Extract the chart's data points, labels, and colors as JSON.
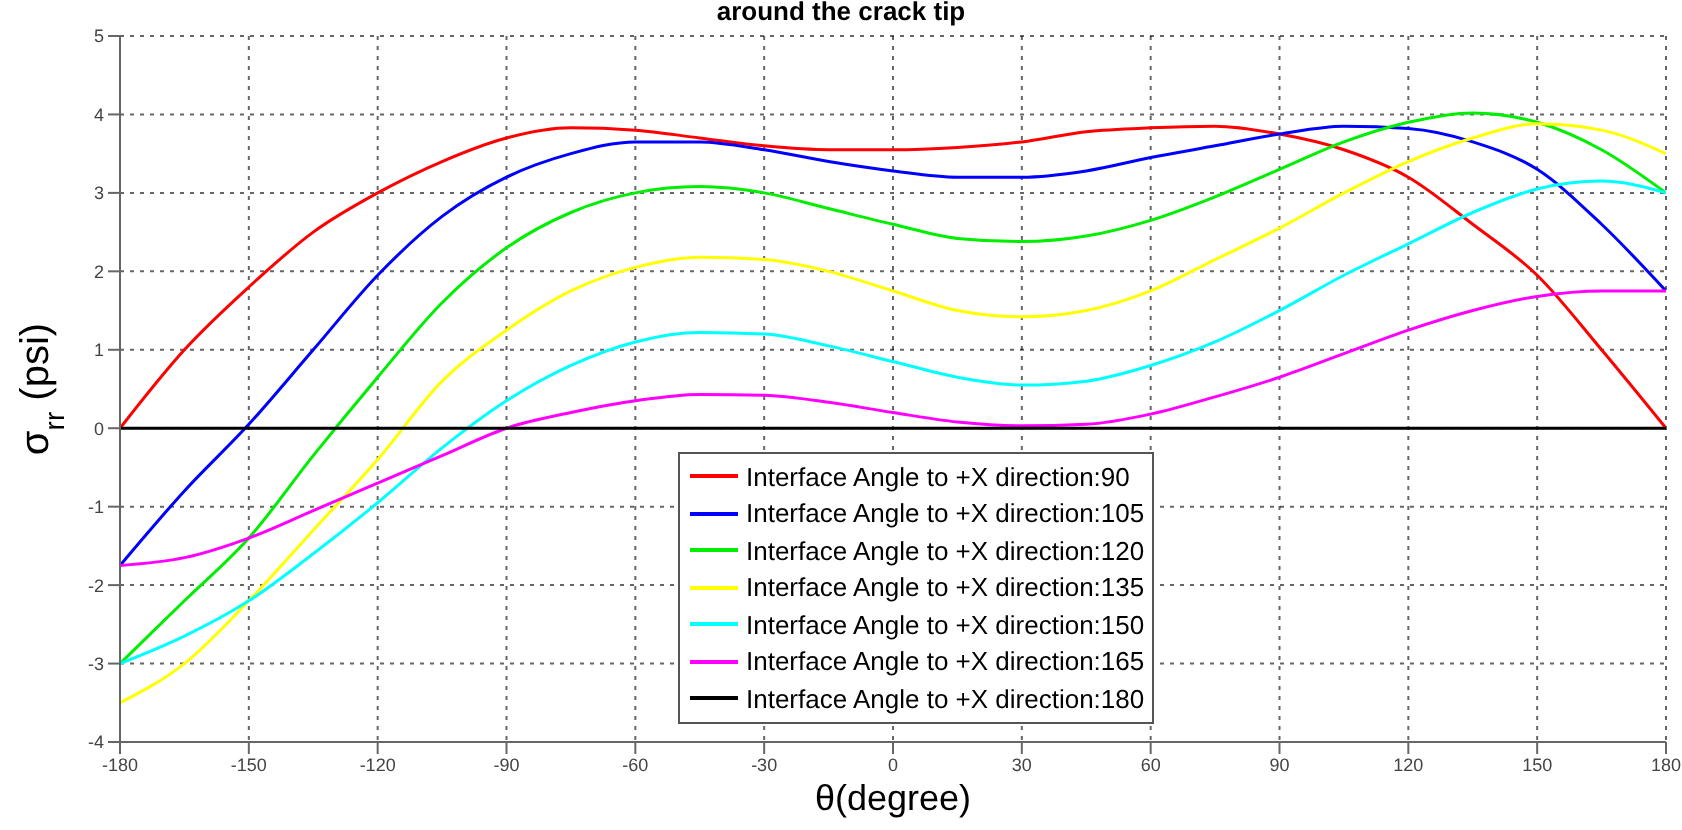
{
  "chart_data": {
    "type": "line",
    "title": "around the crack tip",
    "xlabel": "θ(degree)",
    "ylabel": "σ$_{rr}$ (psi)",
    "x": [
      -180,
      -165,
      -150,
      -135,
      -120,
      -105,
      -90,
      -75,
      -60,
      -45,
      -30,
      -15,
      0,
      15,
      30,
      45,
      60,
      75,
      90,
      105,
      120,
      135,
      150,
      165,
      180
    ],
    "series": [
      {
        "name": "Interface Angle to +X direction:90",
        "color": "#ff0000",
        "values": [
          0,
          1.0,
          1.8,
          2.5,
          3.0,
          3.4,
          3.7,
          3.83,
          3.8,
          3.7,
          3.6,
          3.55,
          3.55,
          3.58,
          3.65,
          3.78,
          3.83,
          3.85,
          3.75,
          3.55,
          3.2,
          2.6,
          1.95,
          1.0,
          0
        ]
      },
      {
        "name": "Interface Angle to +X direction:105",
        "color": "#0000ff",
        "values": [
          -1.75,
          -0.8,
          0.05,
          1.0,
          1.95,
          2.7,
          3.2,
          3.5,
          3.65,
          3.65,
          3.55,
          3.4,
          3.28,
          3.2,
          3.2,
          3.28,
          3.45,
          3.6,
          3.75,
          3.85,
          3.82,
          3.65,
          3.3,
          2.6,
          1.75
        ]
      },
      {
        "name": "Interface Angle to +X direction:120",
        "color": "#00ee00",
        "values": [
          -3.0,
          -2.2,
          -1.4,
          -0.35,
          0.65,
          1.6,
          2.3,
          2.75,
          3.0,
          3.08,
          3.0,
          2.8,
          2.6,
          2.42,
          2.38,
          2.45,
          2.65,
          2.95,
          3.3,
          3.65,
          3.9,
          4.02,
          3.9,
          3.55,
          3.0
        ]
      },
      {
        "name": "Interface Angle to +X direction:135",
        "color": "#ffff00",
        "values": [
          -3.5,
          -3.0,
          -2.2,
          -1.3,
          -0.4,
          0.6,
          1.25,
          1.75,
          2.05,
          2.18,
          2.15,
          2.0,
          1.75,
          1.5,
          1.42,
          1.5,
          1.75,
          2.15,
          2.55,
          3.0,
          3.4,
          3.7,
          3.88,
          3.8,
          3.5
        ]
      },
      {
        "name": "Interface Angle to +X direction:150",
        "color": "#00ffff",
        "values": [
          -3.0,
          -2.65,
          -2.2,
          -1.6,
          -0.95,
          -0.25,
          0.35,
          0.8,
          1.1,
          1.22,
          1.2,
          1.05,
          0.85,
          0.65,
          0.55,
          0.6,
          0.8,
          1.1,
          1.5,
          1.95,
          2.35,
          2.75,
          3.05,
          3.15,
          3.0
        ]
      },
      {
        "name": "Interface Angle to +X direction:165",
        "color": "#ff00ff",
        "values": [
          -1.75,
          -1.65,
          -1.4,
          -1.05,
          -0.7,
          -0.35,
          0.0,
          0.2,
          0.35,
          0.43,
          0.42,
          0.33,
          0.2,
          0.08,
          0.03,
          0.05,
          0.18,
          0.4,
          0.65,
          0.95,
          1.25,
          1.5,
          1.68,
          1.75,
          1.75
        ]
      },
      {
        "name": "Interface Angle to +X direction:180",
        "color": "#000000",
        "values": [
          0,
          0,
          0,
          0,
          0,
          0,
          0,
          0,
          0,
          0,
          0,
          0,
          0,
          0,
          0,
          0,
          0,
          0,
          0,
          0,
          0,
          0,
          0,
          0,
          0
        ]
      }
    ],
    "xlim": [
      -180,
      180
    ],
    "xticks": [
      -180,
      -150,
      -120,
      -90,
      -60,
      -30,
      0,
      30,
      60,
      90,
      120,
      150,
      180
    ],
    "ylim": [
      -4,
      5
    ],
    "yticks": [
      -4,
      -3,
      -2,
      -1,
      0,
      1,
      2,
      3,
      4,
      5
    ],
    "grid": true,
    "legend": "bottom",
    "marker": "none",
    "line_style": "solid"
  }
}
